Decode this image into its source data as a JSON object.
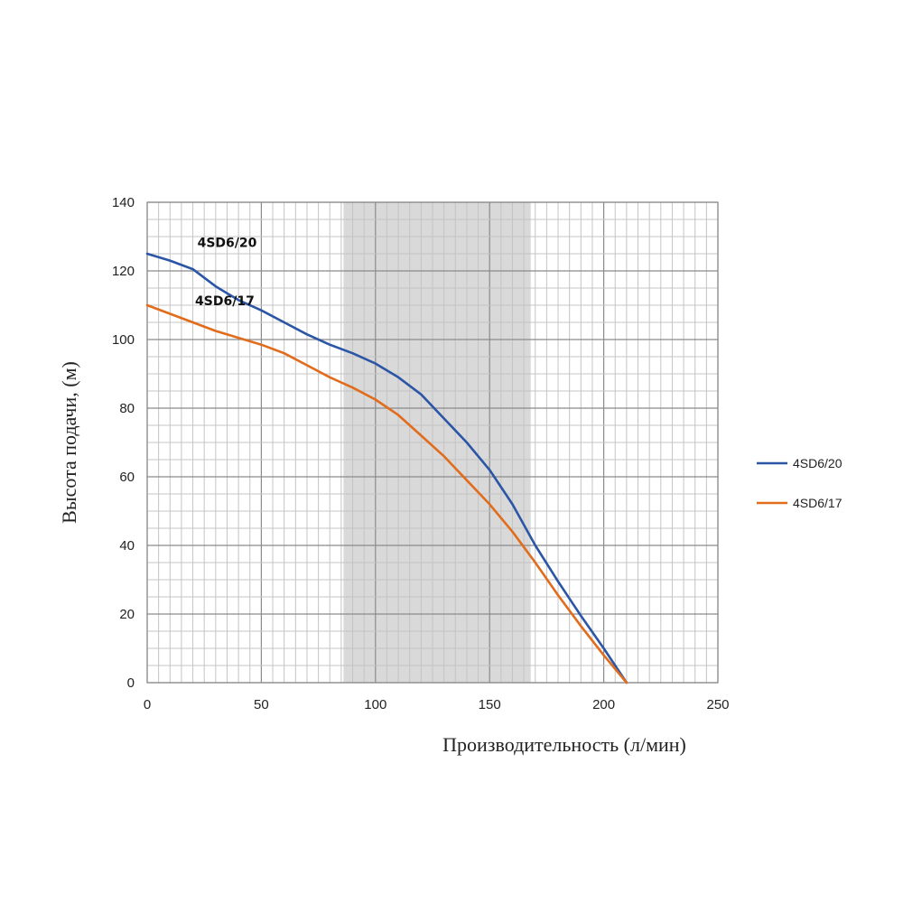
{
  "chart_data": {
    "type": "line",
    "xlabel": "Производительность (л/мин)",
    "ylabel": "Высота подачи, (м)",
    "xlim": [
      0,
      250
    ],
    "ylim": [
      0,
      140
    ],
    "x_ticks": [
      0,
      50,
      100,
      150,
      200,
      250
    ],
    "y_ticks": [
      0,
      20,
      40,
      60,
      80,
      100,
      120,
      140
    ],
    "x_tick_labels": [
      "0",
      "50",
      "100",
      "150",
      "200",
      "250"
    ],
    "y_tick_labels": [
      "0",
      "20",
      "40",
      "60",
      "80",
      "100",
      "120",
      "140"
    ],
    "grid": true,
    "highlight_band": {
      "x_from": 86,
      "x_to": 168
    },
    "legend_position": "right",
    "series": [
      {
        "name": "4SD6/20",
        "color": "#2b56a6",
        "x": [
          0,
          10,
          20,
          30,
          40,
          50,
          60,
          70,
          80,
          90,
          100,
          110,
          120,
          130,
          140,
          150,
          160,
          170,
          180,
          190,
          200,
          210
        ],
        "y": [
          125,
          123,
          120.5,
          115.5,
          111.5,
          108.5,
          105,
          101.5,
          98.5,
          96,
          93,
          89,
          84,
          77,
          70,
          62,
          52,
          40,
          29.5,
          19.5,
          10,
          0
        ]
      },
      {
        "name": "4SD6/17",
        "color": "#e06c1c",
        "x": [
          0,
          10,
          20,
          30,
          40,
          50,
          60,
          70,
          80,
          90,
          100,
          110,
          120,
          130,
          140,
          150,
          160,
          170,
          180,
          190,
          200,
          210
        ],
        "y": [
          110,
          107.5,
          105,
          102.5,
          100.5,
          98.5,
          96,
          92.5,
          89,
          86,
          82.5,
          78,
          72,
          66,
          59,
          52,
          44,
          35,
          25.5,
          16.5,
          8,
          0
        ]
      }
    ],
    "annotations": [
      {
        "text": "4SD6/20",
        "x": 35,
        "y": 127
      },
      {
        "text": "4SD6/17",
        "x": 34,
        "y": 110
      }
    ]
  }
}
